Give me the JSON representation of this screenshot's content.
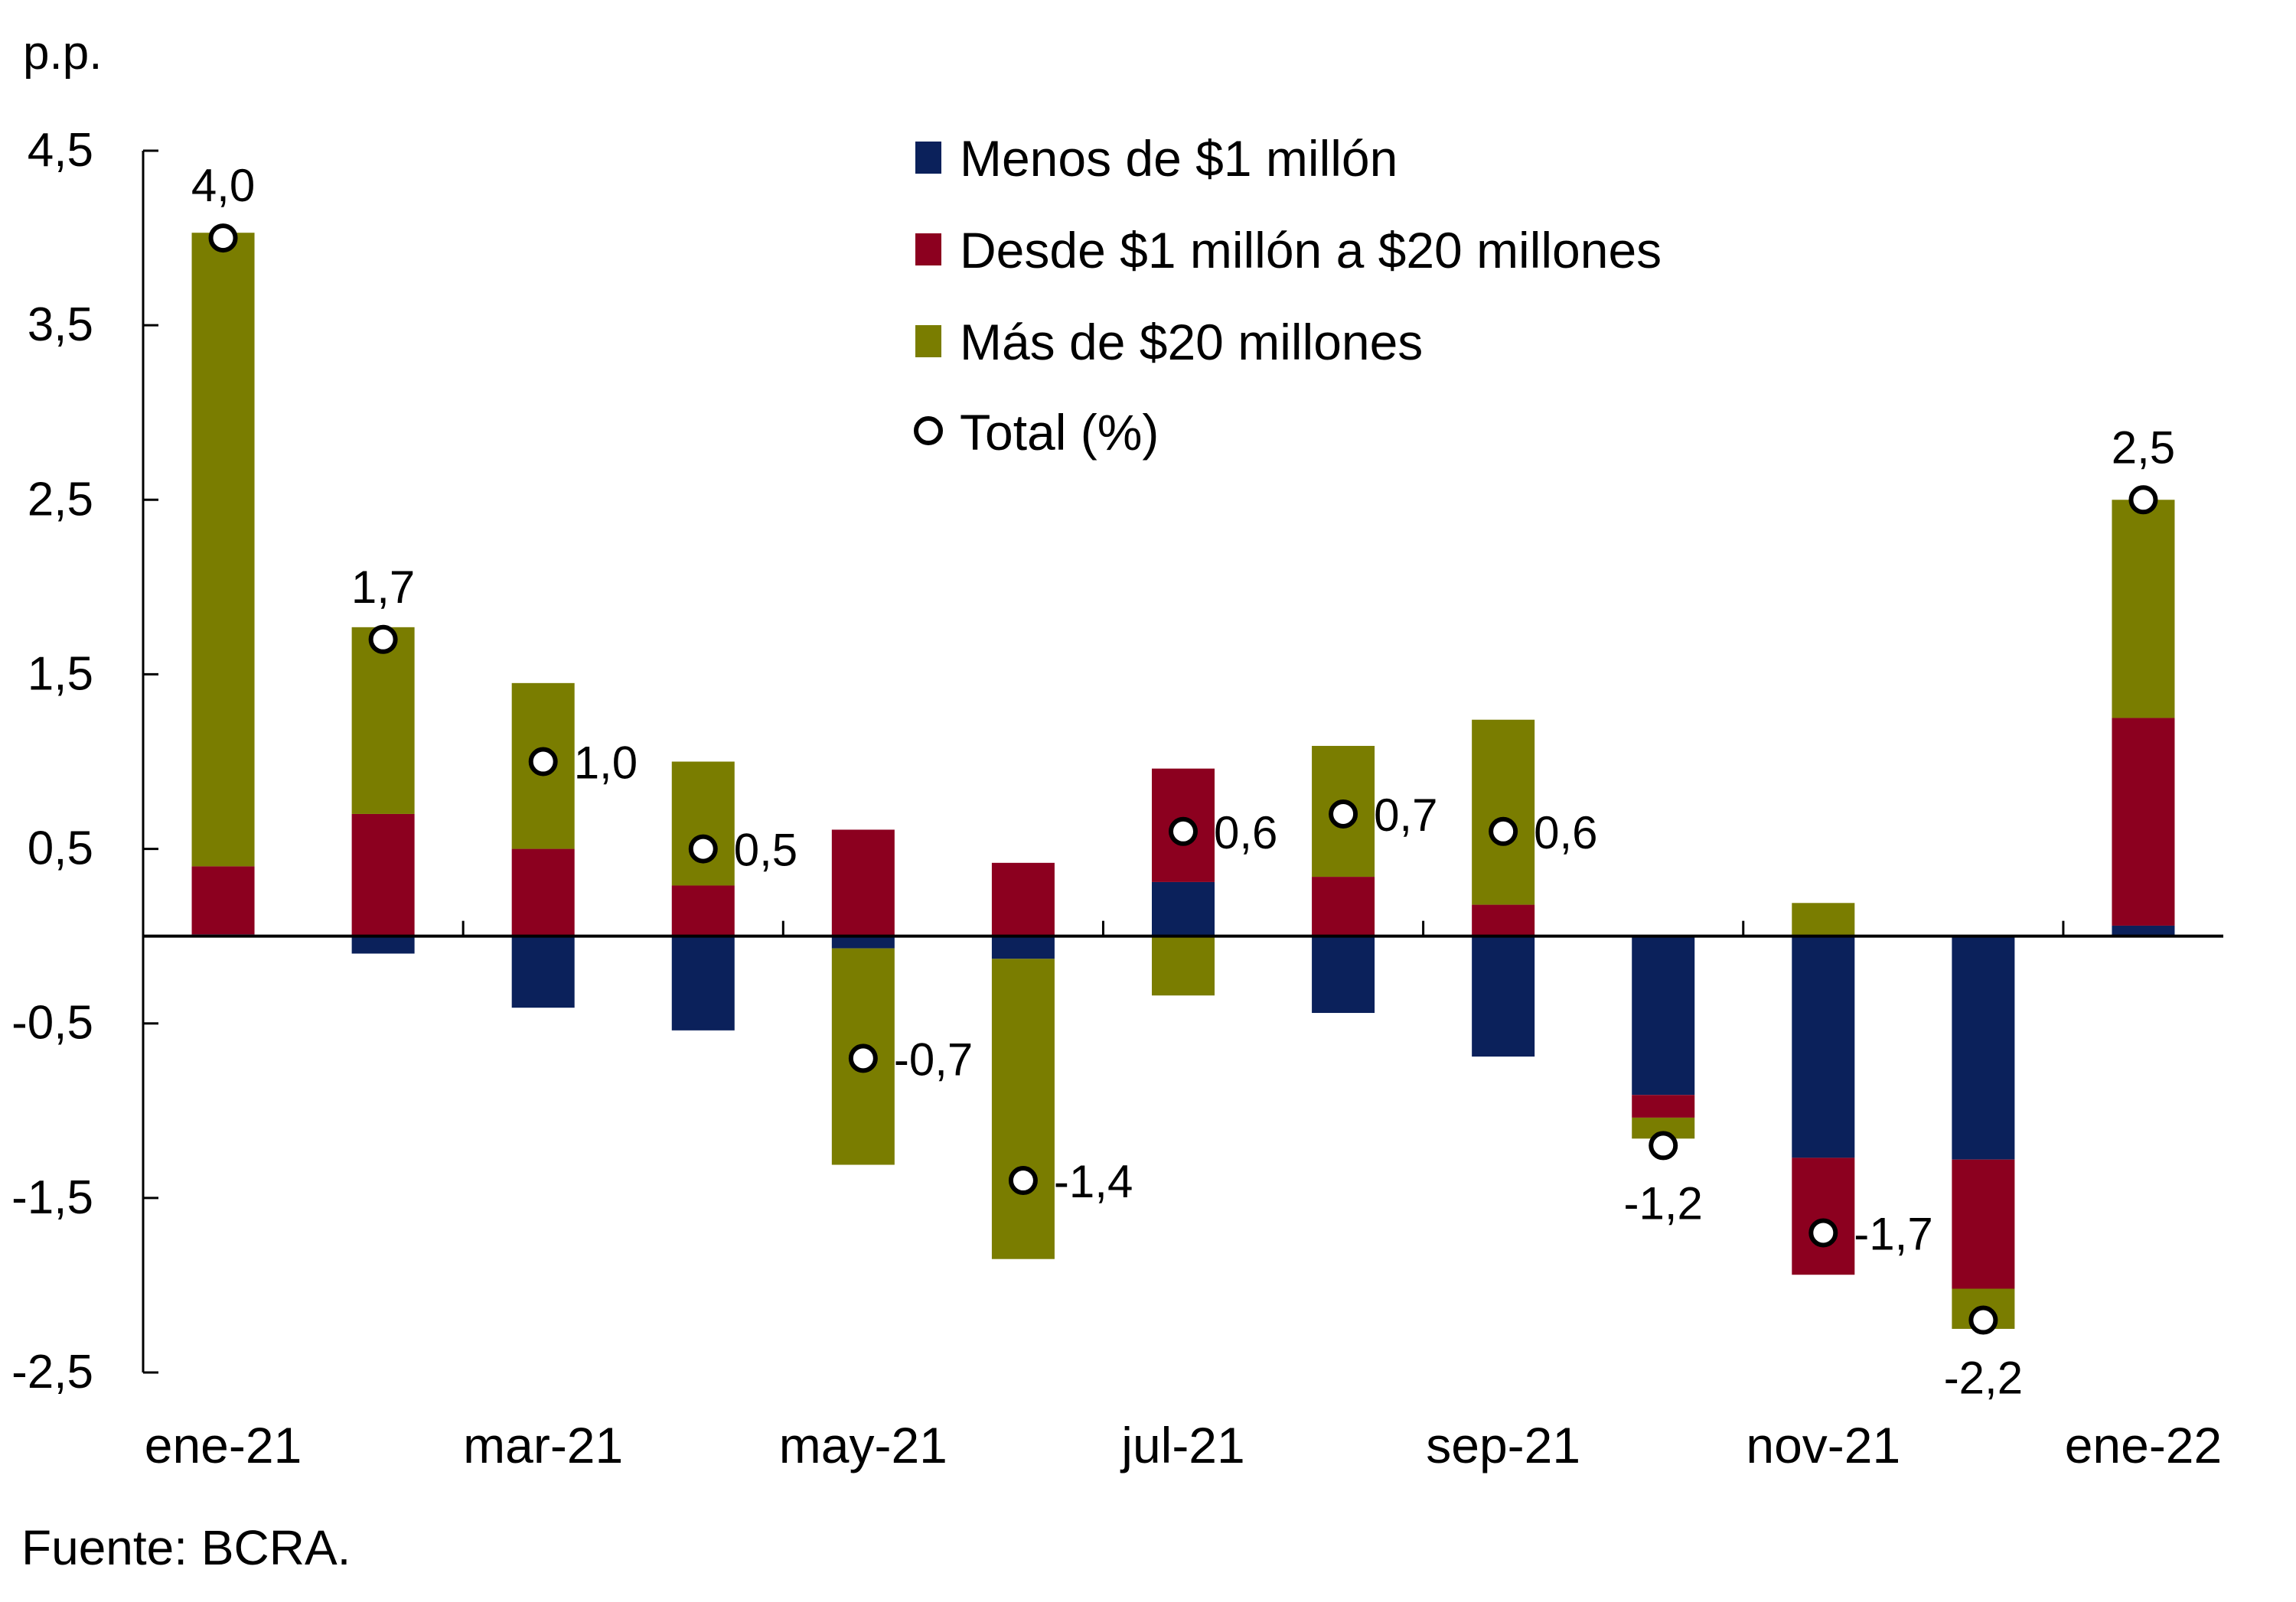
{
  "chart_data": {
    "type": "bar",
    "stacked": true,
    "unit_label": "p.p.",
    "source": "Fuente: BCRA.",
    "ylim": [
      -2.5,
      4.5
    ],
    "yticks": [
      4.5,
      3.5,
      2.5,
      1.5,
      0.5,
      -0.5,
      -1.5,
      -2.5
    ],
    "ytick_labels": [
      "4,5",
      "3,5",
      "2,5",
      "1,5",
      "0,5",
      "-0,5",
      "-1,5",
      "-2,5"
    ],
    "categories": [
      "ene-21",
      "feb-21",
      "mar-21",
      "abr-21",
      "may-21",
      "jun-21",
      "jul-21",
      "ago-21",
      "sep-21",
      "oct-21",
      "nov-21",
      "dic-21",
      "ene-22"
    ],
    "xtick_labels": [
      "ene-21",
      "",
      "mar-21",
      "",
      "may-21",
      "",
      "jul-21",
      "",
      "sep-21",
      "",
      "nov-21",
      "",
      "ene-22"
    ],
    "legend_position": "top-center",
    "series": [
      {
        "name": "Menos de $1 millón",
        "color": "#0b215b",
        "values": [
          0.01,
          -0.1,
          -0.41,
          -0.54,
          -0.07,
          -0.13,
          0.31,
          -0.44,
          -0.69,
          -0.91,
          -1.27,
          -1.28,
          0.06
        ]
      },
      {
        "name": "Desde $1 millón a $20 millones",
        "color": "#8c001f",
        "values": [
          0.39,
          0.7,
          0.5,
          0.29,
          0.61,
          0.42,
          0.65,
          0.34,
          0.18,
          -0.13,
          -0.67,
          -0.74,
          1.19
        ]
      },
      {
        "name": "Más de $20 millones",
        "color": "#7a7d00",
        "values": [
          3.63,
          1.07,
          0.95,
          0.71,
          -1.24,
          -1.72,
          -0.34,
          0.75,
          1.06,
          -0.12,
          0.19,
          -0.23,
          1.25
        ]
      }
    ],
    "total": {
      "name": "Total (%)",
      "values": [
        4.0,
        1.7,
        1.0,
        0.5,
        -0.7,
        -1.4,
        0.6,
        0.7,
        0.6,
        -1.2,
        -1.7,
        -2.2,
        2.5
      ],
      "labels": [
        "4,0",
        "1,7",
        "1,0",
        "0,5",
        "-0,7",
        "-1,4",
        "0,6",
        "0,7",
        "0,6",
        "-1,2",
        "-1,7",
        "-2,2",
        "2,5"
      ],
      "label_positions": [
        "above",
        "above",
        "right",
        "right",
        "right",
        "right",
        "right",
        "right",
        "right",
        "below",
        "right",
        "below",
        "above"
      ]
    }
  }
}
